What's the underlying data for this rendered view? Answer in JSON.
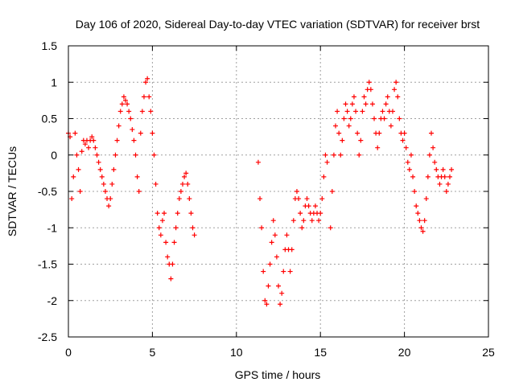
{
  "chart_data": {
    "type": "scatter",
    "title": "Day 106 of 2020, Sidereal Day-to-day VTEC variation (SDTVAR) for receiver brst",
    "xlabel": "GPS time / hours",
    "ylabel": "SDTVAR / TECUs",
    "xlim": [
      0,
      25
    ],
    "ylim": [
      -2.5,
      1.5
    ],
    "xticks": [
      0,
      5,
      10,
      15,
      20,
      25
    ],
    "xtick_labels": [
      "0",
      "5",
      "10",
      "15",
      "20",
      "25"
    ],
    "yticks": [
      -2.5,
      -2,
      -1.5,
      -1,
      -0.5,
      0,
      0.5,
      1,
      1.5
    ],
    "ytick_labels": [
      "-2.5",
      "-2",
      "-1.5",
      "-1",
      "-0.5",
      "0",
      "0.5",
      "1",
      "1.5"
    ],
    "grid": true,
    "marker": "+",
    "marker_color": "#ff0000",
    "series": [
      {
        "name": "SDTVAR",
        "points": [
          [
            0.0,
            0.3
          ],
          [
            0.1,
            0.25
          ],
          [
            0.2,
            -0.6
          ],
          [
            0.3,
            -0.3
          ],
          [
            0.4,
            0.3
          ],
          [
            0.5,
            0.0
          ],
          [
            0.6,
            -0.2
          ],
          [
            0.7,
            -0.5
          ],
          [
            0.8,
            0.05
          ],
          [
            0.9,
            0.2
          ],
          [
            1.0,
            0.15
          ],
          [
            1.1,
            0.2
          ],
          [
            1.2,
            0.1
          ],
          [
            1.3,
            0.2
          ],
          [
            1.4,
            0.25
          ],
          [
            1.5,
            0.2
          ],
          [
            1.6,
            0.1
          ],
          [
            1.7,
            0.0
          ],
          [
            1.8,
            -0.1
          ],
          [
            1.9,
            -0.2
          ],
          [
            2.0,
            -0.3
          ],
          [
            2.1,
            -0.4
          ],
          [
            2.2,
            -0.5
          ],
          [
            2.3,
            -0.6
          ],
          [
            2.4,
            -0.7
          ],
          [
            2.5,
            -0.6
          ],
          [
            2.6,
            -0.4
          ],
          [
            2.7,
            -0.2
          ],
          [
            2.8,
            0.0
          ],
          [
            2.9,
            0.2
          ],
          [
            3.0,
            0.4
          ],
          [
            3.1,
            0.6
          ],
          [
            3.2,
            0.7
          ],
          [
            3.3,
            0.8
          ],
          [
            3.4,
            0.75
          ],
          [
            3.5,
            0.7
          ],
          [
            3.6,
            0.6
          ],
          [
            3.7,
            0.5
          ],
          [
            3.8,
            0.35
          ],
          [
            3.9,
            0.2
          ],
          [
            4.0,
            0.0
          ],
          [
            4.1,
            -0.3
          ],
          [
            4.2,
            -0.5
          ],
          [
            4.3,
            0.3
          ],
          [
            4.4,
            0.6
          ],
          [
            4.5,
            0.8
          ],
          [
            4.6,
            1.0
          ],
          [
            4.7,
            1.05
          ],
          [
            4.8,
            0.8
          ],
          [
            4.9,
            0.6
          ],
          [
            5.0,
            0.3
          ],
          [
            5.1,
            0.0
          ],
          [
            5.2,
            -0.4
          ],
          [
            5.3,
            -0.8
          ],
          [
            5.4,
            -1.0
          ],
          [
            5.5,
            -1.1
          ],
          [
            5.6,
            -0.9
          ],
          [
            5.7,
            -0.8
          ],
          [
            5.8,
            -1.2
          ],
          [
            5.9,
            -1.4
          ],
          [
            6.0,
            -1.5
          ],
          [
            6.1,
            -1.7
          ],
          [
            6.2,
            -1.5
          ],
          [
            6.3,
            -1.2
          ],
          [
            6.4,
            -1.0
          ],
          [
            6.5,
            -0.8
          ],
          [
            6.6,
            -0.6
          ],
          [
            6.7,
            -0.5
          ],
          [
            6.8,
            -0.4
          ],
          [
            6.9,
            -0.3
          ],
          [
            7.0,
            -0.25
          ],
          [
            7.1,
            -0.4
          ],
          [
            7.2,
            -0.6
          ],
          [
            7.3,
            -0.8
          ],
          [
            7.4,
            -1.0
          ],
          [
            7.5,
            -1.1
          ],
          [
            11.3,
            -0.1
          ],
          [
            11.4,
            -0.6
          ],
          [
            11.5,
            -1.0
          ],
          [
            11.6,
            -1.6
          ],
          [
            11.7,
            -2.0
          ],
          [
            11.8,
            -2.05
          ],
          [
            11.9,
            -1.8
          ],
          [
            12.0,
            -1.5
          ],
          [
            12.1,
            -1.2
          ],
          [
            12.2,
            -0.9
          ],
          [
            12.3,
            -1.1
          ],
          [
            12.4,
            -1.4
          ],
          [
            12.5,
            -1.8
          ],
          [
            12.6,
            -2.05
          ],
          [
            12.7,
            -1.9
          ],
          [
            12.8,
            -1.6
          ],
          [
            12.9,
            -1.3
          ],
          [
            13.0,
            -1.1
          ],
          [
            13.1,
            -1.3
          ],
          [
            13.2,
            -1.6
          ],
          [
            13.3,
            -1.3
          ],
          [
            13.4,
            -0.9
          ],
          [
            13.5,
            -0.6
          ],
          [
            13.6,
            -0.5
          ],
          [
            13.7,
            -0.6
          ],
          [
            13.8,
            -0.8
          ],
          [
            13.9,
            -1.0
          ],
          [
            14.0,
            -0.9
          ],
          [
            14.1,
            -0.7
          ],
          [
            14.2,
            -0.6
          ],
          [
            14.3,
            -0.7
          ],
          [
            14.4,
            -0.8
          ],
          [
            14.5,
            -0.9
          ],
          [
            14.6,
            -0.8
          ],
          [
            14.7,
            -0.7
          ],
          [
            14.8,
            -0.8
          ],
          [
            14.9,
            -0.9
          ],
          [
            15.0,
            -0.8
          ],
          [
            15.1,
            -0.6
          ],
          [
            15.2,
            -0.3
          ],
          [
            15.3,
            0.0
          ],
          [
            15.4,
            -0.1
          ],
          [
            15.6,
            -1.0
          ],
          [
            15.7,
            -0.5
          ],
          [
            15.8,
            0.0
          ],
          [
            15.9,
            0.4
          ],
          [
            16.0,
            0.6
          ],
          [
            16.1,
            0.3
          ],
          [
            16.2,
            0.0
          ],
          [
            16.3,
            0.2
          ],
          [
            16.4,
            0.5
          ],
          [
            16.5,
            0.7
          ],
          [
            16.6,
            0.6
          ],
          [
            16.7,
            0.4
          ],
          [
            16.8,
            0.5
          ],
          [
            16.9,
            0.7
          ],
          [
            17.0,
            0.8
          ],
          [
            17.1,
            0.6
          ],
          [
            17.2,
            0.3
          ],
          [
            17.3,
            0.0
          ],
          [
            17.4,
            0.2
          ],
          [
            17.5,
            0.6
          ],
          [
            17.6,
            0.8
          ],
          [
            17.7,
            0.7
          ],
          [
            17.8,
            0.9
          ],
          [
            17.9,
            1.0
          ],
          [
            18.0,
            0.9
          ],
          [
            18.1,
            0.7
          ],
          [
            18.2,
            0.5
          ],
          [
            18.3,
            0.3
          ],
          [
            18.4,
            0.1
          ],
          [
            18.5,
            0.3
          ],
          [
            18.6,
            0.5
          ],
          [
            18.7,
            0.6
          ],
          [
            18.8,
            0.5
          ],
          [
            18.9,
            0.7
          ],
          [
            19.0,
            0.8
          ],
          [
            19.1,
            0.6
          ],
          [
            19.2,
            0.4
          ],
          [
            19.3,
            0.6
          ],
          [
            19.4,
            0.9
          ],
          [
            19.5,
            1.0
          ],
          [
            19.6,
            0.8
          ],
          [
            19.7,
            0.5
          ],
          [
            19.8,
            0.3
          ],
          [
            19.9,
            0.2
          ],
          [
            20.0,
            0.3
          ],
          [
            20.1,
            0.1
          ],
          [
            20.2,
            -0.1
          ],
          [
            20.3,
            -0.2
          ],
          [
            20.4,
            0.0
          ],
          [
            20.5,
            -0.3
          ],
          [
            20.6,
            -0.5
          ],
          [
            20.7,
            -0.7
          ],
          [
            20.8,
            -0.8
          ],
          [
            20.9,
            -0.9
          ],
          [
            21.0,
            -1.0
          ],
          [
            21.1,
            -1.05
          ],
          [
            21.2,
            -0.9
          ],
          [
            21.3,
            -0.6
          ],
          [
            21.4,
            -0.3
          ],
          [
            21.5,
            0.0
          ],
          [
            21.6,
            0.3
          ],
          [
            21.7,
            0.1
          ],
          [
            21.8,
            -0.1
          ],
          [
            21.9,
            -0.2
          ],
          [
            22.0,
            -0.3
          ],
          [
            22.1,
            -0.4
          ],
          [
            22.2,
            -0.3
          ],
          [
            22.3,
            -0.2
          ],
          [
            22.4,
            -0.3
          ],
          [
            22.5,
            -0.5
          ],
          [
            22.6,
            -0.4
          ],
          [
            22.7,
            -0.3
          ],
          [
            22.8,
            -0.2
          ]
        ]
      }
    ]
  }
}
